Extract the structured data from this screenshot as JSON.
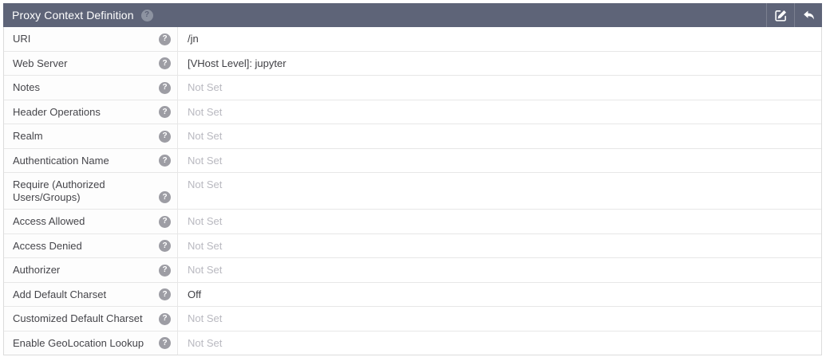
{
  "panel": {
    "title": "Proxy Context Definition",
    "actions": {
      "edit_label": "edit",
      "return_label": "return"
    }
  },
  "icons": {
    "help_glyph": "?",
    "title_help": "question-circle-icon",
    "edit": "edit-pencil-square-icon",
    "return": "reply-arrow-icon"
  },
  "rows": [
    {
      "label": "URI",
      "value": "/jn",
      "set": true
    },
    {
      "label": "Web Server",
      "value": "[VHost Level]: jupyter",
      "set": true
    },
    {
      "label": "Notes",
      "value": "Not Set",
      "set": false
    },
    {
      "label": "Header Operations",
      "value": "Not Set",
      "set": false
    },
    {
      "label": "Realm",
      "value": "Not Set",
      "set": false
    },
    {
      "label": "Authentication Name",
      "value": "Not Set",
      "set": false
    },
    {
      "label": "Require (Authorized Users/Groups)",
      "value": "Not Set",
      "set": false
    },
    {
      "label": "Access Allowed",
      "value": "Not Set",
      "set": false
    },
    {
      "label": "Access Denied",
      "value": "Not Set",
      "set": false
    },
    {
      "label": "Authorizer",
      "value": "Not Set",
      "set": false
    },
    {
      "label": "Add Default Charset",
      "value": "Off",
      "set": true
    },
    {
      "label": "Customized Default Charset",
      "value": "Not Set",
      "set": false
    },
    {
      "label": "Enable GeoLocation Lookup",
      "value": "Not Set",
      "set": false
    }
  ],
  "colors": {
    "header_bg": "#5e6478",
    "header_text": "#ffffff",
    "value_text": "#404045",
    "not_set_text": "#b9b9c0",
    "border": "#e7e7e7",
    "help_icon_bg": "#9d9da4"
  }
}
